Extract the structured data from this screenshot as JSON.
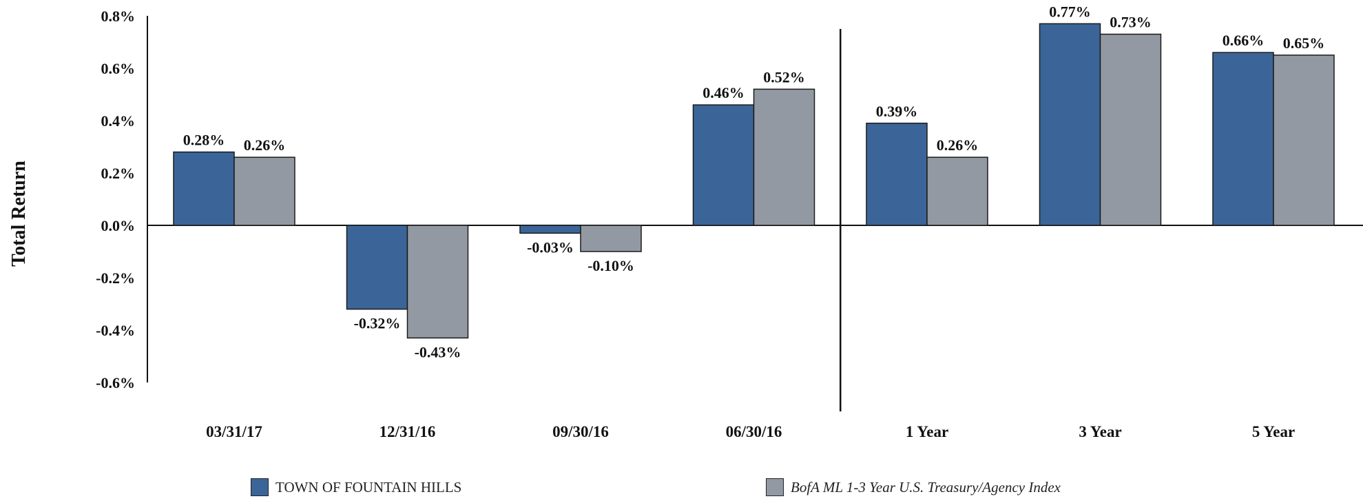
{
  "chart_data": {
    "type": "bar",
    "ylabel": "Total Return",
    "ylim": [
      -0.6,
      0.8
    ],
    "yticks": [
      "0.8%",
      "0.6%",
      "0.4%",
      "0.2%",
      "0.0%",
      "-0.2%",
      "-0.4%",
      "-0.6%"
    ],
    "categories": [
      "03/31/17",
      "12/31/16",
      "09/30/16",
      "06/30/16",
      "1 Year",
      "3 Year",
      "5 Year"
    ],
    "separator_after_category": "06/30/16",
    "series": [
      {
        "name": "TOWN OF FOUNTAIN HILLS",
        "color": "#3b6598",
        "values": [
          0.28,
          -0.32,
          -0.03,
          0.46,
          0.39,
          0.77,
          0.66
        ],
        "labels": [
          "0.28%",
          "-0.32%",
          "-0.03%",
          "0.46%",
          "0.39%",
          "0.77%",
          "0.66%"
        ]
      },
      {
        "name": "BofA ML 1-3 Year U.S. Treasury/Agency Index",
        "color": "#9399a3",
        "values": [
          0.26,
          -0.43,
          -0.1,
          0.52,
          0.26,
          0.73,
          0.65
        ],
        "labels": [
          "0.26%",
          "-0.43%",
          "-0.10%",
          "0.52%",
          "0.26%",
          "0.73%",
          "0.65%"
        ]
      }
    ],
    "grid": false,
    "legend_position": "bottom"
  },
  "legend": {
    "item1": "TOWN OF FOUNTAIN HILLS",
    "item2": "BofA ML 1-3 Year U.S. Treasury/Agency Index"
  }
}
